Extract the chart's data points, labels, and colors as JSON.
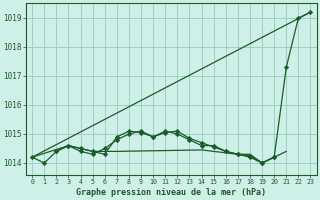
{
  "title": "Graphe pression niveau de la mer (hPa)",
  "bg_color": "#cff0e8",
  "grid_color": "#99ccbb",
  "line_color": "#1a5c2a",
  "xlim": [
    -0.5,
    23.5
  ],
  "ylim": [
    1013.6,
    1019.5
  ],
  "yticks": [
    1014,
    1015,
    1016,
    1017,
    1018,
    1019
  ],
  "xticks": [
    0,
    1,
    2,
    3,
    4,
    5,
    6,
    7,
    8,
    9,
    10,
    11,
    12,
    13,
    14,
    15,
    16,
    17,
    18,
    19,
    20,
    21,
    22,
    23
  ],
  "series": [
    {
      "x": [
        0,
        1,
        2,
        3,
        4,
        5,
        6,
        7,
        8,
        9,
        10,
        11,
        12,
        13,
        14,
        15,
        16,
        17,
        18,
        19,
        20,
        21,
        22,
        23
      ],
      "y": [
        1014.2,
        1014.0,
        1014.4,
        1014.6,
        1014.4,
        1014.3,
        1014.5,
        1014.8,
        1015.0,
        1015.1,
        1014.9,
        1015.1,
        1015.0,
        1014.8,
        1014.6,
        1014.6,
        1014.4,
        1014.3,
        1014.2,
        1014.0,
        1014.2,
        1017.3,
        1019.0,
        1019.2
      ],
      "marker": "D",
      "markersize": 2.2,
      "linewidth": 0.9
    },
    {
      "x": [
        2,
        3,
        4,
        5,
        6,
        7,
        8,
        9,
        10,
        11,
        12,
        13,
        14,
        15,
        16,
        17,
        18,
        19,
        20
      ],
      "y": [
        1014.4,
        1014.6,
        1014.5,
        1014.4,
        1014.3,
        1014.9,
        1015.1,
        1015.05,
        1014.9,
        1015.05,
        1015.1,
        1014.85,
        1014.7,
        1014.55,
        1014.4,
        1014.3,
        1014.25,
        1014.0,
        1014.2
      ],
      "marker": "D",
      "markersize": 2.2,
      "linewidth": 0.9
    },
    {
      "x": [
        0,
        3,
        4,
        5,
        6,
        7,
        14,
        17,
        18,
        19,
        20,
        21
      ],
      "y": [
        1014.2,
        1014.6,
        1014.5,
        1014.4,
        1014.4,
        1014.4,
        1014.45,
        1014.3,
        1014.3,
        1014.0,
        1014.2,
        1014.4
      ],
      "marker": null,
      "markersize": 0,
      "linewidth": 0.9
    },
    {
      "x": [
        0,
        23
      ],
      "y": [
        1014.2,
        1019.2
      ],
      "marker": null,
      "markersize": 0,
      "linewidth": 0.9
    }
  ]
}
